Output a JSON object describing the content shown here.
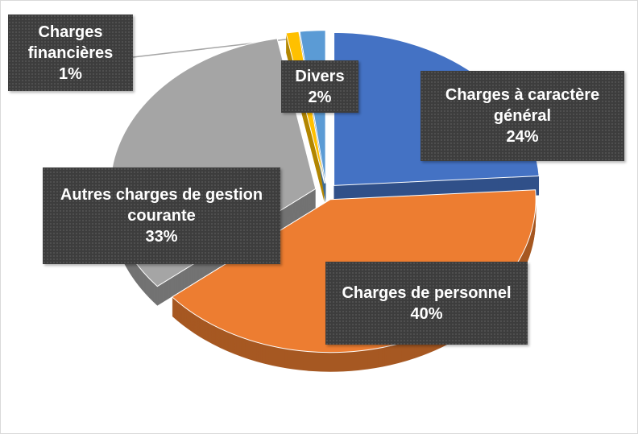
{
  "chart_data": {
    "type": "pie",
    "categories": [
      "Charges à caractère général",
      "Charges de personnel",
      "Autres charges de gestion courante",
      "Charges financières",
      "Divers"
    ],
    "values": [
      24,
      40,
      33,
      1,
      2
    ],
    "value_labels": [
      "24%",
      "40%",
      "33%",
      "1%",
      "2%"
    ],
    "colors": [
      "#4472c4",
      "#ed7d31",
      "#a5a5a5",
      "#ffc000",
      "#5b9bd5"
    ]
  }
}
